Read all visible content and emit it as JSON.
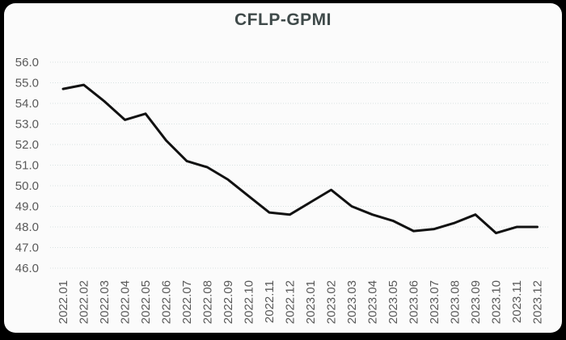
{
  "window": {
    "background": "#000000",
    "card_background": "#fbfbfb"
  },
  "chart_data": {
    "type": "line",
    "title": "CFLP-GPMI",
    "categories": [
      "2022.01",
      "2022.02",
      "2022.03",
      "2022.04",
      "2022.05",
      "2022.06",
      "2022.07",
      "2022.08",
      "2022.09",
      "2022.10",
      "2022.11",
      "2022.12",
      "2023.01",
      "2023.02",
      "2023.03",
      "2023.04",
      "2023.05",
      "2023.06",
      "2023.07",
      "2023.08",
      "2023.09",
      "2023.10",
      "2023.11",
      "2023.12"
    ],
    "series": [
      {
        "name": "CFLP-GPMI",
        "values": [
          54.7,
          54.9,
          54.1,
          53.2,
          53.5,
          52.2,
          51.2,
          50.9,
          50.3,
          49.5,
          48.7,
          48.6,
          49.2,
          49.8,
          49.0,
          48.6,
          48.3,
          47.8,
          47.9,
          48.2,
          48.6,
          47.7,
          48.0,
          48.0
        ]
      }
    ],
    "xlabel": "",
    "ylabel": "",
    "ylim": [
      46.0,
      56.0
    ],
    "ytick_step": 1.0,
    "ytick_format_decimals": 1,
    "grid": "horizontal-dotted",
    "legend": "none",
    "colors": {
      "line": "#111111",
      "gridline": "#d8e2e2",
      "tick_label": "#595959",
      "title": "#3f4a4a"
    }
  }
}
